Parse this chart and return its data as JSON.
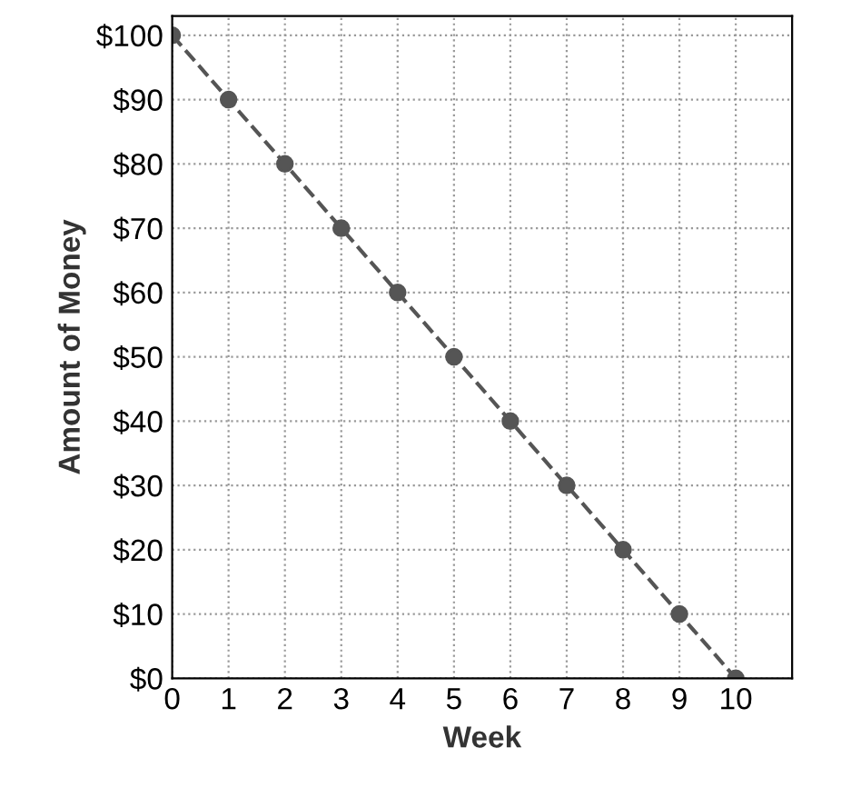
{
  "chart_data": {
    "type": "line",
    "xlabel": "Week",
    "ylabel": "Amount of Money",
    "x": [
      0,
      1,
      2,
      3,
      4,
      5,
      6,
      7,
      8,
      9,
      10
    ],
    "series": [
      {
        "color": "#555555",
        "values": [
          100,
          90,
          80,
          70,
          60,
          50,
          40,
          30,
          20,
          10,
          0
        ]
      }
    ],
    "xlim": [
      0,
      11
    ],
    "ylim": [
      0,
      103
    ],
    "xticks": [
      0,
      1,
      2,
      3,
      4,
      5,
      6,
      7,
      8,
      9,
      10
    ],
    "yticks": [
      {
        "value": 0,
        "label": "$0"
      },
      {
        "value": 10,
        "label": "$10"
      },
      {
        "value": 20,
        "label": "$20"
      },
      {
        "value": 30,
        "label": "$30"
      },
      {
        "value": 40,
        "label": "$40"
      },
      {
        "value": 50,
        "label": "$50"
      },
      {
        "value": 60,
        "label": "$60"
      },
      {
        "value": 70,
        "label": "$70"
      },
      {
        "value": 80,
        "label": "$80"
      },
      {
        "value": 90,
        "label": "$90"
      },
      {
        "value": 100,
        "label": "$100"
      }
    ],
    "grid": true,
    "marker": "circle",
    "line_style": "dashed"
  }
}
